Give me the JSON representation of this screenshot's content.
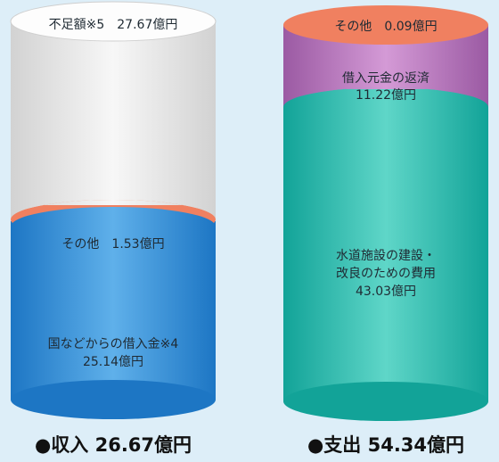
{
  "chart_data": [
    {
      "type": "stacked-cylinder",
      "total_label": "●収入 26.67億円",
      "total": 26.67,
      "segments": [
        {
          "name": "国などからの借入金※4",
          "value_label": "25.14億円",
          "value": 25.14,
          "color": "#2e86d0"
        },
        {
          "name": "その他",
          "value_label": "1.53億円",
          "value": 1.53,
          "color": "#f08060"
        },
        {
          "name": "不足額※5",
          "value_label": "27.67億円",
          "value": 27.67,
          "color": "#e4e4e4"
        }
      ]
    },
    {
      "type": "stacked-cylinder",
      "total_label": "●支出 54.34億円",
      "total": 54.34,
      "segments": [
        {
          "name": "水道施設の建設・改良のための費用",
          "value_label": "43.03億円",
          "value": 43.03,
          "color": "#1fb5aa"
        },
        {
          "name": "借入元金の返済",
          "value_label": "11.22億円",
          "value": 11.22,
          "color": "#b06fb5"
        },
        {
          "name": "その他",
          "value_label": "0.09億円",
          "value": 0.09,
          "color": "#f08060"
        }
      ]
    }
  ],
  "labels": {
    "left_top": "不足額※5　27.67億円",
    "left_other": "その他　1.53億円",
    "left_loan_line1": "国などからの借入金※4",
    "left_loan_line2": "25.14億円",
    "right_top": "その他　0.09億円",
    "right_repay_line1": "借入元金の返済",
    "right_repay_line2": "11.22億円",
    "right_build_line1": "水道施設の建設・",
    "right_build_line2": "改良のための費用",
    "right_build_line3": "43.03億円",
    "caption_income": "●収入 26.67億円",
    "caption_expense": "●支出 54.34億円"
  }
}
